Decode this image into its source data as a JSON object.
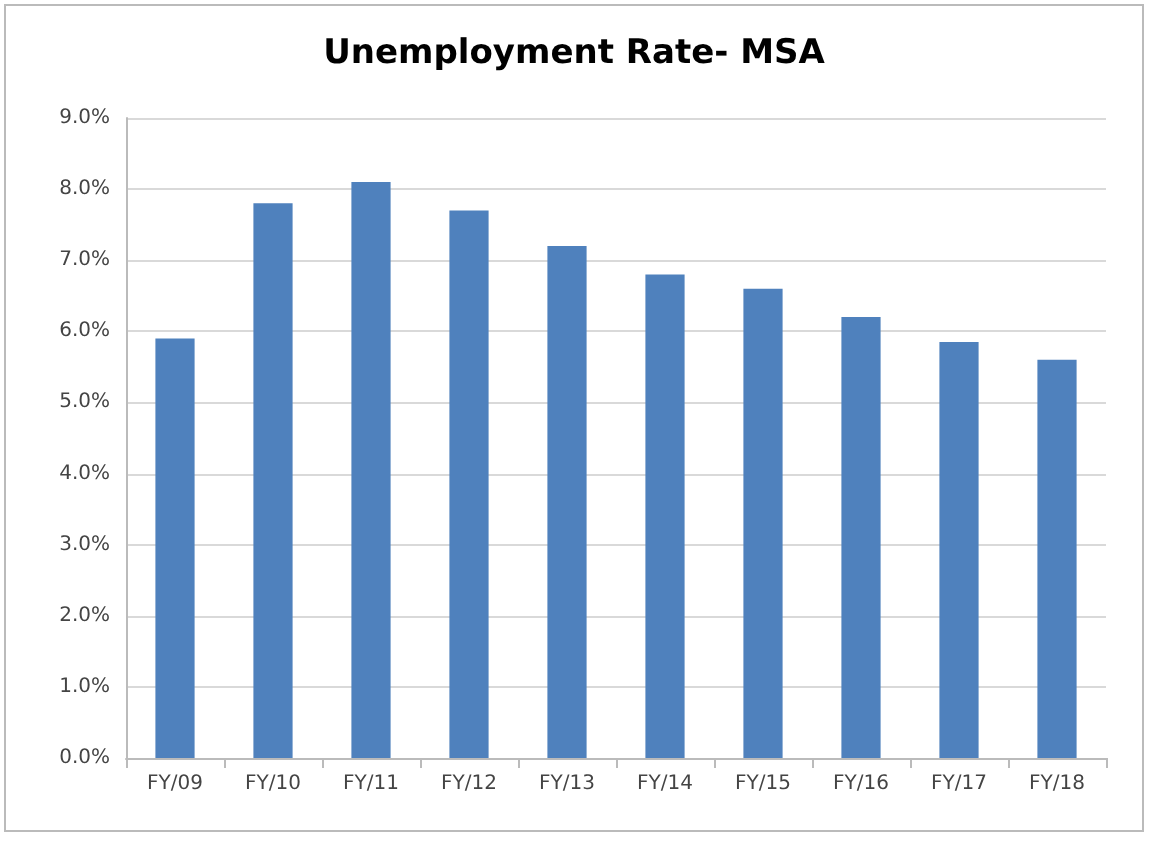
{
  "chart_data": {
    "type": "bar",
    "title": "Unemployment Rate- MSA",
    "categories": [
      "FY/09",
      "FY/10",
      "FY/11",
      "FY/12",
      "FY/13",
      "FY/14",
      "FY/15",
      "FY/16",
      "FY/17",
      "FY/18"
    ],
    "values": [
      5.9,
      7.8,
      8.1,
      7.7,
      7.2,
      6.8,
      6.6,
      6.2,
      5.85,
      5.6
    ],
    "color": "#4f81bd",
    "ylim": [
      0,
      9
    ],
    "yticks": [
      {
        "value": 0,
        "label": "0.0%"
      },
      {
        "value": 1,
        "label": "1.0%"
      },
      {
        "value": 2,
        "label": "2.0%"
      },
      {
        "value": 3,
        "label": "3.0%"
      },
      {
        "value": 4,
        "label": "4.0%"
      },
      {
        "value": 5,
        "label": "5.0%"
      },
      {
        "value": 6,
        "label": "6.0%"
      },
      {
        "value": 7,
        "label": "7.0%"
      },
      {
        "value": 8,
        "label": "8.0%"
      },
      {
        "value": 9,
        "label": "9.0%"
      }
    ],
    "grid": "y"
  }
}
